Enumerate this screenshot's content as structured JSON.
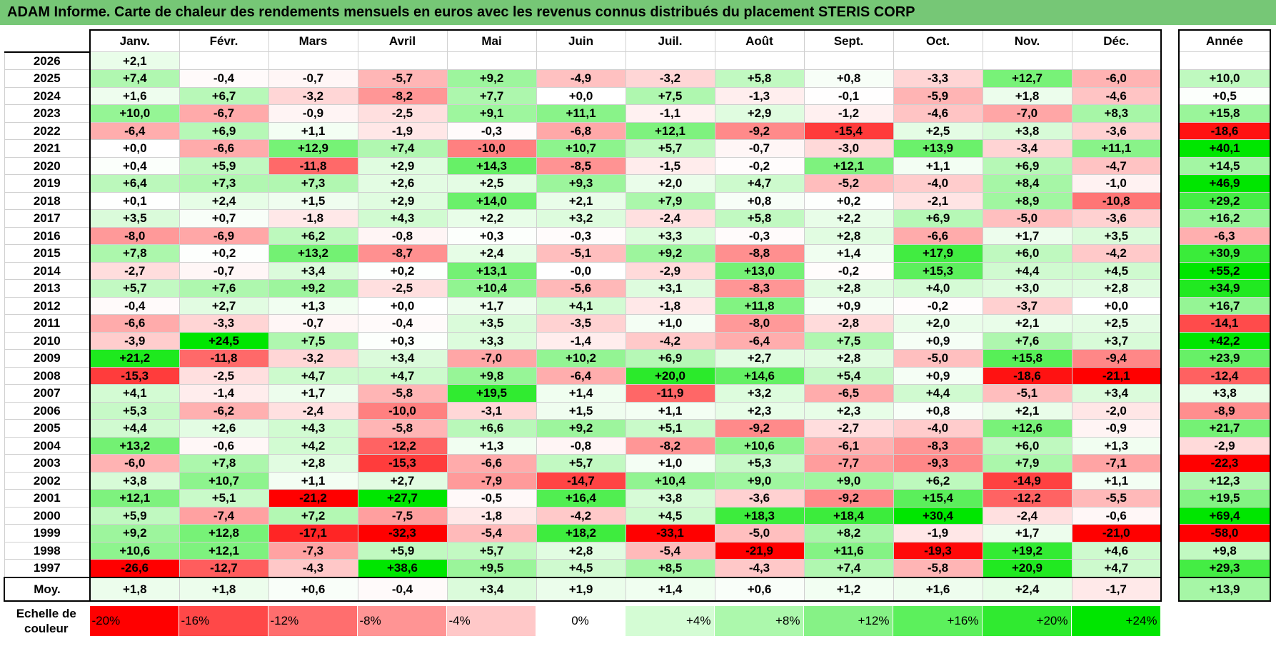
{
  "title": "ADAM Informe. Carte de chaleur des rendements mensuels en euros avec les revenus connus distribués du placement STERIS CORP",
  "chart_data": {
    "type": "heatmap",
    "title": "ADAM Informe. Carte de chaleur des rendements mensuels en euros avec les revenus connus distribués du placement STERIS CORP",
    "columns": [
      "Janv.",
      "Févr.",
      "Mars",
      "Avril",
      "Mai",
      "Juin",
      "Juil.",
      "Août",
      "Sept.",
      "Oct.",
      "Nov.",
      "Déc."
    ],
    "annual_label": "Année",
    "rows": [
      {
        "year": "2026",
        "values": [
          "+2,1",
          "",
          "",
          "",
          "",
          "",
          "",
          "",
          "",
          "",
          "",
          ""
        ],
        "annual": ""
      },
      {
        "year": "2025",
        "values": [
          "+7,4",
          "-0,4",
          "-0,7",
          "-5,7",
          "+9,2",
          "-4,9",
          "-3,2",
          "+5,8",
          "+0,8",
          "-3,3",
          "+12,7",
          "-6,0"
        ],
        "annual": "+10,0"
      },
      {
        "year": "2024",
        "values": [
          "+1,6",
          "+6,7",
          "-3,2",
          "-8,2",
          "+7,7",
          "+0,0",
          "+7,5",
          "-1,3",
          "-0,1",
          "-5,9",
          "+1,8",
          "-4,6"
        ],
        "annual": "+0,5"
      },
      {
        "year": "2023",
        "values": [
          "+10,0",
          "-6,7",
          "-0,9",
          "-2,5",
          "+9,1",
          "+11,1",
          "-1,1",
          "+2,9",
          "-1,2",
          "-4,6",
          "-7,0",
          "+8,3"
        ],
        "annual": "+15,8"
      },
      {
        "year": "2022",
        "values": [
          "-6,4",
          "+6,9",
          "+1,1",
          "-1,9",
          "-0,3",
          "-6,8",
          "+12,1",
          "-9,2",
          "-15,4",
          "+2,5",
          "+3,8",
          "-3,6"
        ],
        "annual": "-18,6"
      },
      {
        "year": "2021",
        "values": [
          "+0,0",
          "-6,6",
          "+12,9",
          "+7,4",
          "-10,0",
          "+10,7",
          "+5,7",
          "-0,7",
          "-3,0",
          "+13,9",
          "-3,4",
          "+11,1"
        ],
        "annual": "+40,1"
      },
      {
        "year": "2020",
        "values": [
          "+0,4",
          "+5,9",
          "-11,8",
          "+2,9",
          "+14,3",
          "-8,5",
          "-1,5",
          "-0,2",
          "+12,1",
          "+1,1",
          "+6,9",
          "-4,7"
        ],
        "annual": "+14,5"
      },
      {
        "year": "2019",
        "values": [
          "+6,4",
          "+7,3",
          "+7,3",
          "+2,6",
          "+2,5",
          "+9,3",
          "+2,0",
          "+4,7",
          "-5,2",
          "-4,0",
          "+8,4",
          "-1,0"
        ],
        "annual": "+46,9"
      },
      {
        "year": "2018",
        "values": [
          "+0,1",
          "+2,4",
          "+1,5",
          "+2,9",
          "+14,0",
          "+2,1",
          "+7,9",
          "+0,8",
          "+0,2",
          "-2,1",
          "+8,9",
          "-10,8"
        ],
        "annual": "+29,2"
      },
      {
        "year": "2017",
        "values": [
          "+3,5",
          "+0,7",
          "-1,8",
          "+4,3",
          "+2,2",
          "+3,2",
          "-2,4",
          "+5,8",
          "+2,2",
          "+6,9",
          "-5,0",
          "-3,6"
        ],
        "annual": "+16,2"
      },
      {
        "year": "2016",
        "values": [
          "-8,0",
          "-6,9",
          "+6,2",
          "-0,8",
          "+0,3",
          "-0,3",
          "+3,3",
          "-0,3",
          "+2,8",
          "-6,6",
          "+1,7",
          "+3,5"
        ],
        "annual": "-6,3"
      },
      {
        "year": "2015",
        "values": [
          "+7,8",
          "+0,2",
          "+13,2",
          "-8,7",
          "+2,4",
          "-5,1",
          "+9,2",
          "-8,8",
          "+1,4",
          "+17,9",
          "+6,0",
          "-4,2"
        ],
        "annual": "+30,9"
      },
      {
        "year": "2014",
        "values": [
          "-2,7",
          "-0,7",
          "+3,4",
          "+0,2",
          "+13,1",
          "-0,0",
          "-2,9",
          "+13,0",
          "-0,2",
          "+15,3",
          "+4,4",
          "+4,5"
        ],
        "annual": "+55,2"
      },
      {
        "year": "2013",
        "values": [
          "+5,7",
          "+7,6",
          "+9,2",
          "-2,5",
          "+10,4",
          "-5,6",
          "+3,1",
          "-8,3",
          "+2,8",
          "+4,0",
          "+3,0",
          "+2,8"
        ],
        "annual": "+34,9"
      },
      {
        "year": "2012",
        "values": [
          "-0,4",
          "+2,7",
          "+1,3",
          "+0,0",
          "+1,7",
          "+4,1",
          "-1,8",
          "+11,8",
          "+0,9",
          "-0,2",
          "-3,7",
          "+0,0"
        ],
        "annual": "+16,7"
      },
      {
        "year": "2011",
        "values": [
          "-6,6",
          "-3,3",
          "-0,7",
          "-0,4",
          "+3,5",
          "-3,5",
          "+1,0",
          "-8,0",
          "-2,8",
          "+2,0",
          "+2,1",
          "+2,5"
        ],
        "annual": "-14,1"
      },
      {
        "year": "2010",
        "values": [
          "-3,9",
          "+24,5",
          "+7,5",
          "+0,3",
          "+3,3",
          "-1,4",
          "-4,2",
          "-6,4",
          "+7,5",
          "+0,9",
          "+7,6",
          "+3,7"
        ],
        "annual": "+42,2"
      },
      {
        "year": "2009",
        "values": [
          "+21,2",
          "-11,8",
          "-3,2",
          "+3,4",
          "-7,0",
          "+10,2",
          "+6,9",
          "+2,7",
          "+2,8",
          "-5,0",
          "+15,8",
          "-9,4"
        ],
        "annual": "+23,9"
      },
      {
        "year": "2008",
        "values": [
          "-15,3",
          "-2,5",
          "+4,7",
          "+4,7",
          "+9,8",
          "-6,4",
          "+20,0",
          "+14,6",
          "+5,4",
          "+0,9",
          "-18,6",
          "-21,1"
        ],
        "annual": "-12,4"
      },
      {
        "year": "2007",
        "values": [
          "+4,1",
          "-1,4",
          "+1,7",
          "-5,8",
          "+19,5",
          "+1,4",
          "-11,9",
          "+3,2",
          "-6,5",
          "+4,4",
          "-5,1",
          "+3,4"
        ],
        "annual": "+3,8"
      },
      {
        "year": "2006",
        "values": [
          "+5,3",
          "-6,2",
          "-2,4",
          "-10,0",
          "-3,1",
          "+1,5",
          "+1,1",
          "+2,3",
          "+2,3",
          "+0,8",
          "+2,1",
          "-2,0"
        ],
        "annual": "-8,9"
      },
      {
        "year": "2005",
        "values": [
          "+4,4",
          "+2,6",
          "+4,3",
          "-5,8",
          "+6,6",
          "+9,2",
          "+5,1",
          "-9,2",
          "-2,7",
          "-4,0",
          "+12,6",
          "-0,9"
        ],
        "annual": "+21,7"
      },
      {
        "year": "2004",
        "values": [
          "+13,2",
          "-0,6",
          "+4,2",
          "-12,2",
          "+1,3",
          "-0,8",
          "-8,2",
          "+10,6",
          "-6,1",
          "-8,3",
          "+6,0",
          "+1,3"
        ],
        "annual": "-2,9"
      },
      {
        "year": "2003",
        "values": [
          "-6,0",
          "+7,8",
          "+2,8",
          "-15,3",
          "-6,6",
          "+5,7",
          "+1,0",
          "+5,3",
          "-7,7",
          "-9,3",
          "+7,9",
          "-7,1"
        ],
        "annual": "-22,3"
      },
      {
        "year": "2002",
        "values": [
          "+3,8",
          "+10,7",
          "+1,1",
          "+2,7",
          "-7,9",
          "-14,7",
          "+10,4",
          "+9,0",
          "+9,0",
          "+6,2",
          "-14,9",
          "+1,1"
        ],
        "annual": "+12,3"
      },
      {
        "year": "2001",
        "values": [
          "+12,1",
          "+5,1",
          "-21,2",
          "+27,7",
          "-0,5",
          "+16,4",
          "+3,8",
          "-3,6",
          "-9,2",
          "+15,4",
          "-12,2",
          "-5,5"
        ],
        "annual": "+19,5"
      },
      {
        "year": "2000",
        "values": [
          "+5,9",
          "-7,4",
          "+7,2",
          "-7,5",
          "-1,8",
          "-4,2",
          "+4,5",
          "+18,3",
          "+18,4",
          "+30,4",
          "-2,4",
          "-0,6"
        ],
        "annual": "+69,4"
      },
      {
        "year": "1999",
        "values": [
          "+9,2",
          "+12,8",
          "-17,1",
          "-32,3",
          "-5,4",
          "+18,2",
          "-33,1",
          "-5,0",
          "+8,2",
          "-1,9",
          "+1,7",
          "-21,0"
        ],
        "annual": "-58,0"
      },
      {
        "year": "1998",
        "values": [
          "+10,6",
          "+12,1",
          "-7,3",
          "+5,9",
          "+5,7",
          "+2,8",
          "-5,4",
          "-21,9",
          "+11,6",
          "-19,3",
          "+19,2",
          "+4,6"
        ],
        "annual": "+9,8"
      },
      {
        "year": "1997",
        "values": [
          "-26,6",
          "-12,7",
          "-4,3",
          "+38,6",
          "+9,5",
          "+4,5",
          "+8,5",
          "-4,3",
          "+7,4",
          "-5,8",
          "+20,9",
          "+4,7"
        ],
        "annual": "+29,3"
      }
    ],
    "average": {
      "label": "Moy.",
      "values": [
        "+1,8",
        "+1,8",
        "+0,6",
        "-0,4",
        "+3,4",
        "+1,9",
        "+1,4",
        "+0,6",
        "+1,2",
        "+1,6",
        "+2,4",
        "-1,7"
      ],
      "annual": "+13,9"
    },
    "color_scale": {
      "label_line1": "Echelle de",
      "label_line2": "couleur",
      "stops": [
        "-20%",
        "-16%",
        "-12%",
        "-8%",
        "-4%",
        "0%",
        "+4%",
        "+8%",
        "+12%",
        "+16%",
        "+20%",
        "+24%"
      ],
      "colors": [
        "#ff0000",
        "#ff4848",
        "#ff6e6e",
        "#ff9494",
        "#ffc8c8",
        "#ffffff",
        "#d4fcd4",
        "#acf8ac",
        "#86f286",
        "#5cf05c",
        "#30ea30",
        "#00e600"
      ]
    }
  }
}
